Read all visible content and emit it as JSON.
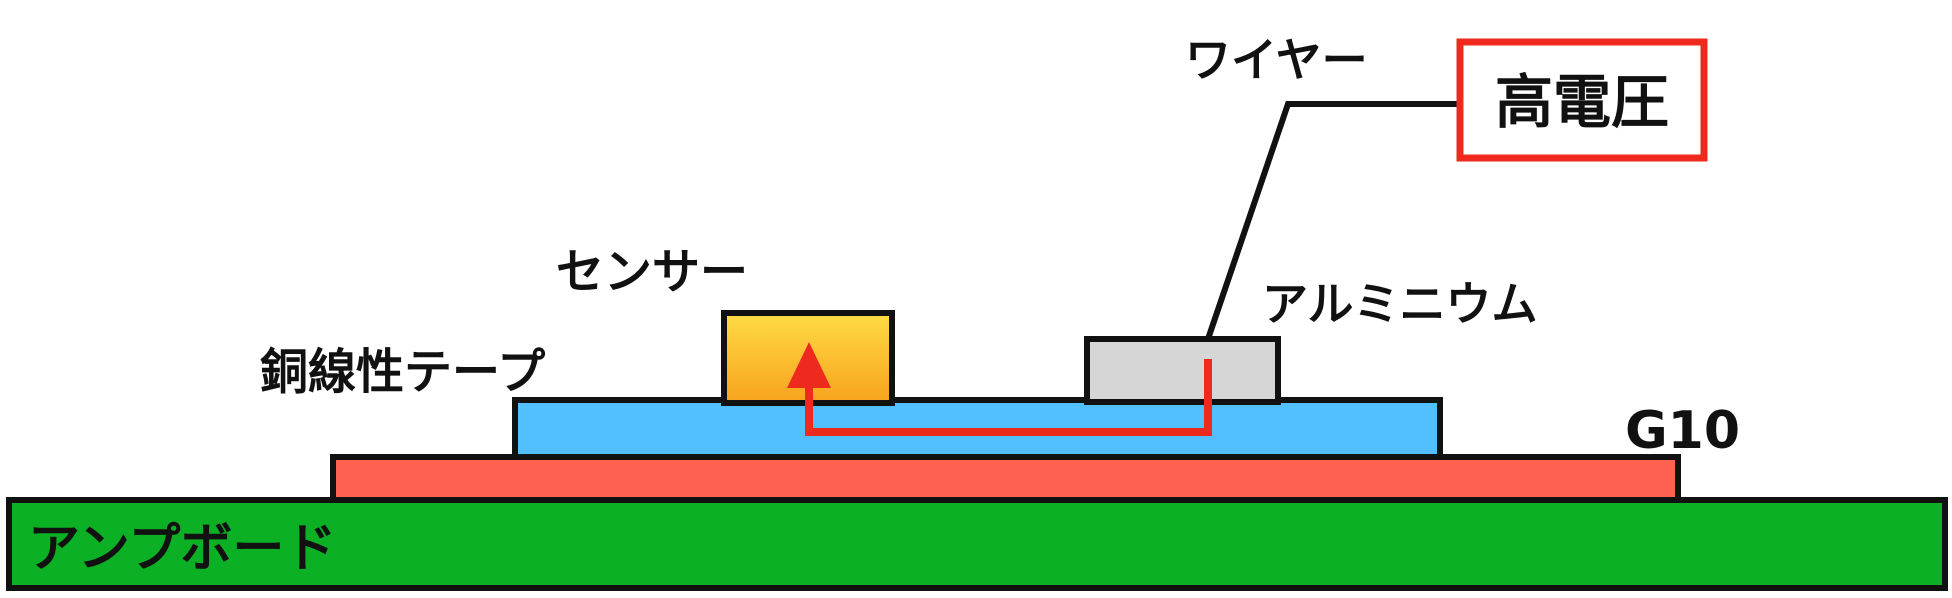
{
  "labels": {
    "high_voltage": "高電圧",
    "wire": "ワイヤー",
    "sensor": "センサー",
    "aluminium": "アルミニウム",
    "copper_tape": "銅線性テープ",
    "g10": "G10",
    "amp_board": "アンプボード"
  },
  "colors": {
    "amp_board": "#0BB024",
    "copper_tape": "#FF6150",
    "g10": "#52BFFF",
    "sensor_top": "#FFDB45",
    "sensor_bottom": "#F7A31D",
    "aluminium": "#D6D6D6",
    "current_path": "#EE2A1F",
    "high_voltage_border": "#EE2A1F",
    "outline": "#111111"
  },
  "icons": {
    "current_arrow": "arrow-up-icon"
  }
}
